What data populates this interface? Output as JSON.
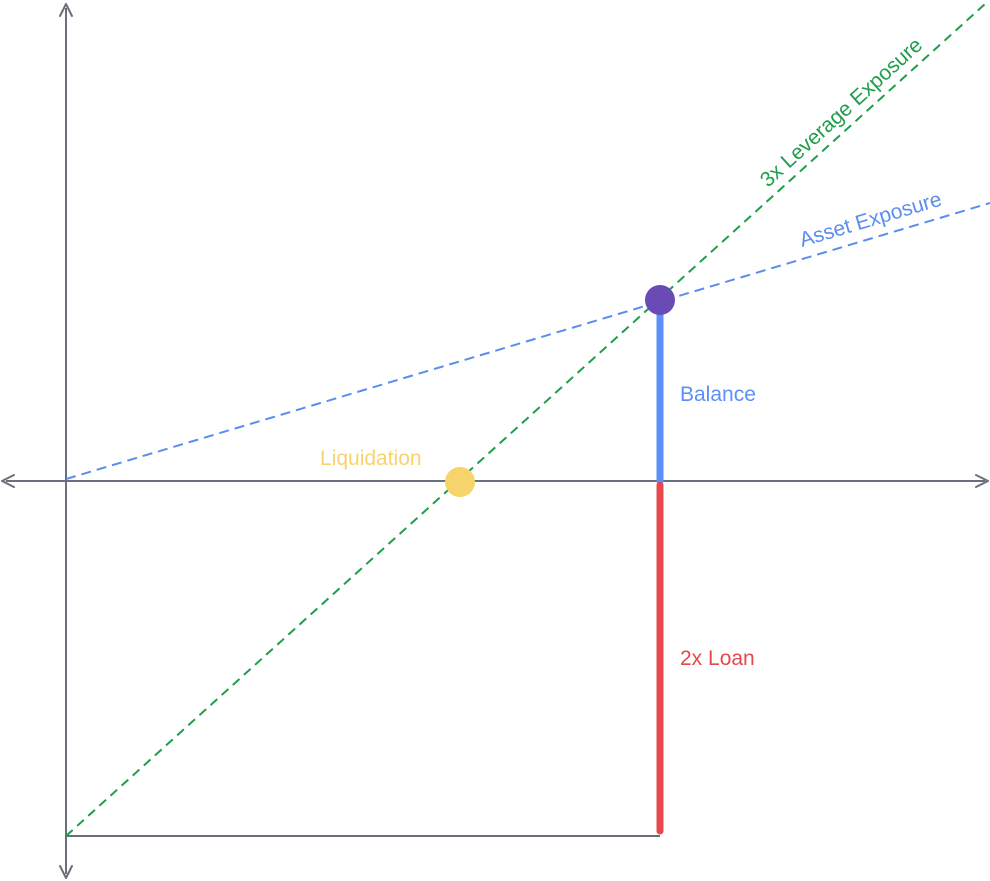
{
  "labels": {
    "leverage": "3x Leverage Exposure",
    "asset": "Asset Exposure",
    "balance": "Balance",
    "liquidation": "Liquidation",
    "loan": "2x Loan"
  },
  "colors": {
    "axis": "#6b6f7b",
    "leverage": "#1e9e4a",
    "asset": "#5b8def",
    "balance": "#5b8ff9",
    "liquidation": "#f7d46b",
    "loan": "#e5484d",
    "position_point": "#6a4bb5"
  }
}
